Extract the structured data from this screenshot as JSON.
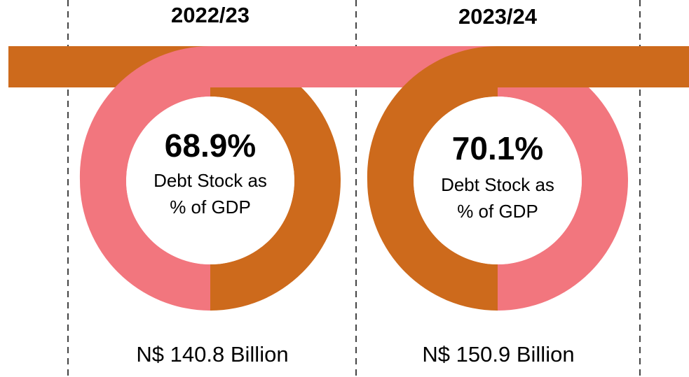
{
  "panels": [
    {
      "year": "2022/23",
      "percent": "68.9%",
      "label_lines": [
        "Debt Stock as",
        "% of GDP"
      ],
      "amount": "N$ 140.8 Billion"
    },
    {
      "year": "2023/24",
      "percent": "70.1%",
      "label_lines": [
        "Debt Stock as",
        "% of GDP"
      ],
      "amount": "N$ 150.9 Billion"
    }
  ]
}
